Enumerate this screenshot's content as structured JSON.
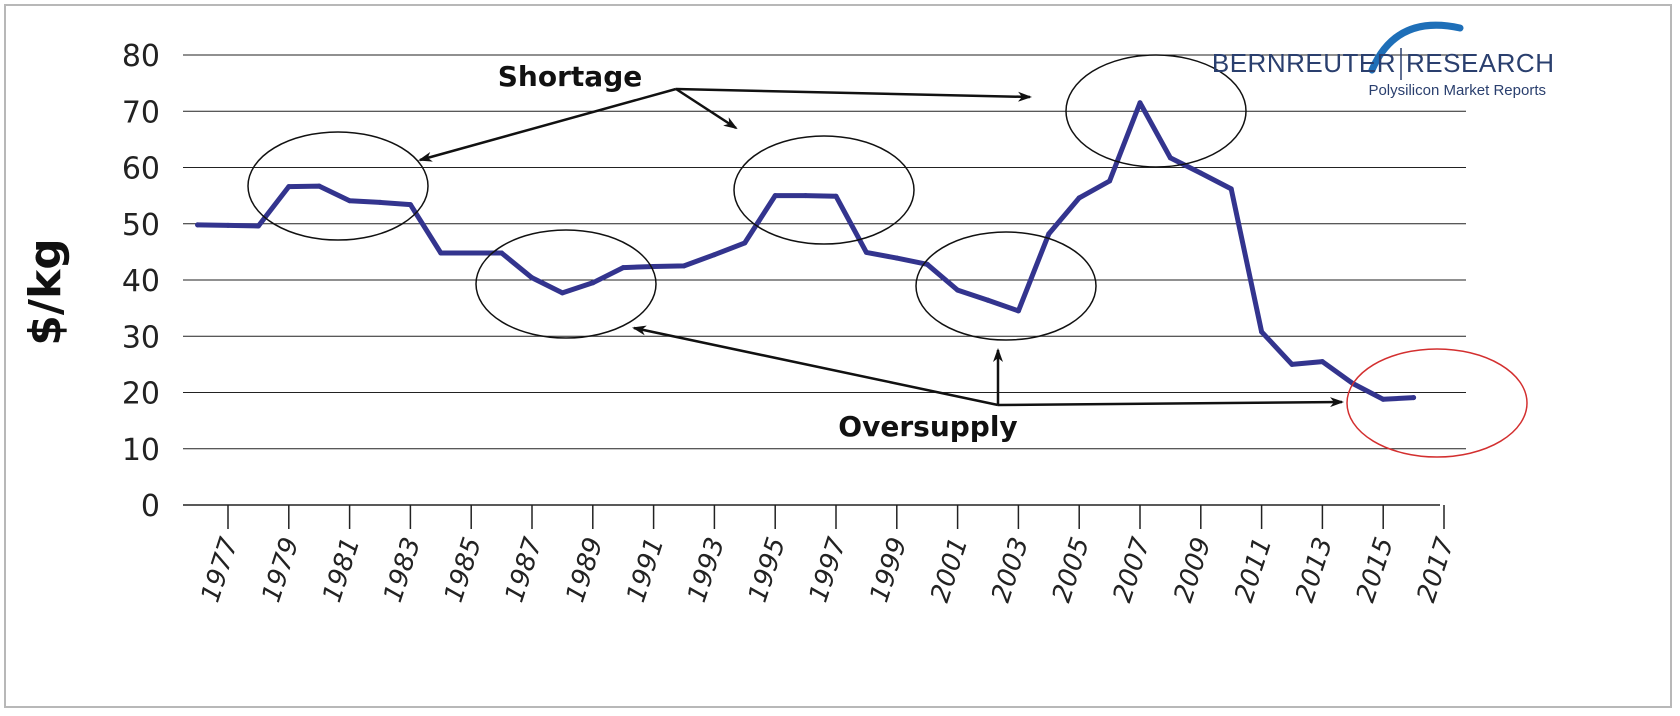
{
  "chart_data": {
    "type": "line",
    "title": "",
    "xlabel": "",
    "ylabel": "$/kg",
    "ylim": [
      0,
      80
    ],
    "yticks": [
      "0",
      "10",
      "20",
      "30",
      "40",
      "50",
      "60",
      "70",
      "80"
    ],
    "xticks": [
      "1977",
      "1979",
      "1981",
      "1983",
      "1985",
      "1987",
      "1989",
      "1991",
      "1993",
      "1995",
      "1997",
      "1999",
      "2001",
      "2003",
      "2005",
      "2007",
      "2009",
      "2011",
      "2013",
      "2015",
      "2017"
    ],
    "grid": true,
    "series": [
      {
        "color": "#33348e",
        "x": [
          1976,
          1977,
          1978,
          1979,
          1980,
          1981,
          1982,
          1983,
          1984,
          1985,
          1986,
          1987,
          1988,
          1989,
          1990,
          1991,
          1992,
          1993,
          1994,
          1995,
          1996,
          1997,
          1998,
          1999,
          2000,
          2001,
          2002,
          2003,
          2004,
          2005,
          2006,
          2007,
          2008,
          2009,
          2010,
          2011,
          2012,
          2013,
          2014,
          2015,
          2016
        ],
        "values": [
          49.8,
          49.7,
          49.6,
          56.6,
          56.7,
          54.1,
          53.8,
          53.4,
          44.8,
          44.8,
          44.8,
          40.4,
          37.7,
          39.5,
          42.2,
          42.4,
          42.5,
          44.5,
          46.6,
          55.0,
          55.0,
          54.9,
          44.9,
          43.9,
          42.8,
          38.2,
          36.4,
          34.5,
          48.2,
          54.6,
          57.6,
          71.5,
          61.7,
          59.0,
          56.2,
          30.8,
          25.0,
          25.5,
          21.6,
          18.8,
          19.1
        ]
      }
    ],
    "annotations": {
      "shortage_label": "Shortage",
      "oversupply_label": "Oversupply"
    }
  },
  "brand": {
    "name_left": "BERNREUTER",
    "name_right": "RESEARCH",
    "subtitle": "Polysilicon Market Reports",
    "accent": "#1e6fb8",
    "text_color": "#2a3f6e"
  },
  "colors": {
    "line": "#33348e",
    "ellipse_black": "#111111",
    "ellipse_red": "#d32f2f",
    "grid": "#222222"
  }
}
